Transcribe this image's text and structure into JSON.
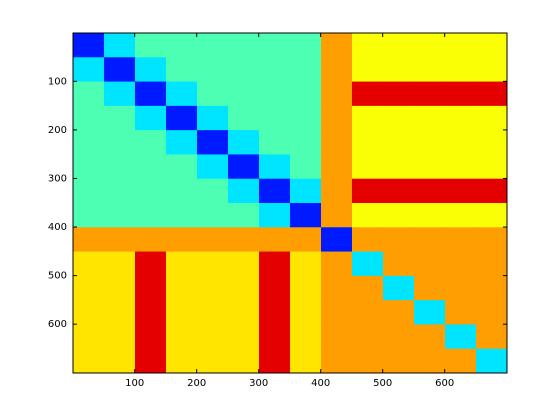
{
  "chart_data": {
    "type": "heatmap",
    "xlim": [
      0.5,
      700.5
    ],
    "ylim": [
      0.5,
      700.5
    ],
    "y_reversed": true,
    "xticks": [
      100,
      200,
      300,
      400,
      500,
      600
    ],
    "yticks": [
      100,
      200,
      300,
      400,
      500,
      600
    ],
    "clim": [
      0,
      1
    ],
    "colormap": "jet",
    "z": [
      [
        0.15,
        0.35,
        0.45,
        0.45,
        0.45,
        0.45,
        0.45,
        0.45,
        0.72,
        0.62,
        0.62,
        0.62,
        0.62,
        0.62
      ],
      [
        0.35,
        0.15,
        0.35,
        0.45,
        0.45,
        0.45,
        0.45,
        0.45,
        0.72,
        0.62,
        0.62,
        0.62,
        0.62,
        0.62
      ],
      [
        0.45,
        0.35,
        0.15,
        0.35,
        0.45,
        0.45,
        0.45,
        0.45,
        0.72,
        0.9,
        0.9,
        0.9,
        0.9,
        0.9
      ],
      [
        0.45,
        0.45,
        0.35,
        0.15,
        0.35,
        0.45,
        0.45,
        0.45,
        0.72,
        0.62,
        0.62,
        0.62,
        0.62,
        0.62
      ],
      [
        0.45,
        0.45,
        0.45,
        0.35,
        0.15,
        0.35,
        0.45,
        0.45,
        0.72,
        0.62,
        0.62,
        0.62,
        0.62,
        0.62
      ],
      [
        0.45,
        0.45,
        0.45,
        0.45,
        0.35,
        0.15,
        0.35,
        0.45,
        0.72,
        0.62,
        0.62,
        0.62,
        0.62,
        0.62
      ],
      [
        0.45,
        0.45,
        0.45,
        0.45,
        0.45,
        0.35,
        0.15,
        0.35,
        0.72,
        0.9,
        0.9,
        0.9,
        0.9,
        0.9
      ],
      [
        0.45,
        0.45,
        0.45,
        0.45,
        0.45,
        0.45,
        0.35,
        0.15,
        0.72,
        0.62,
        0.62,
        0.62,
        0.62,
        0.62
      ],
      [
        0.72,
        0.72,
        0.72,
        0.72,
        0.72,
        0.72,
        0.72,
        0.72,
        0.15,
        0.72,
        0.72,
        0.72,
        0.72,
        0.72
      ],
      [
        0.65,
        0.65,
        0.9,
        0.65,
        0.65,
        0.65,
        0.9,
        0.65,
        0.72,
        0.35,
        0.72,
        0.72,
        0.72,
        0.72
      ],
      [
        0.65,
        0.65,
        0.9,
        0.65,
        0.65,
        0.65,
        0.9,
        0.65,
        0.72,
        0.72,
        0.35,
        0.72,
        0.72,
        0.72
      ],
      [
        0.65,
        0.65,
        0.9,
        0.65,
        0.65,
        0.65,
        0.9,
        0.65,
        0.72,
        0.72,
        0.72,
        0.35,
        0.72,
        0.72
      ],
      [
        0.65,
        0.65,
        0.9,
        0.65,
        0.65,
        0.65,
        0.9,
        0.65,
        0.72,
        0.72,
        0.72,
        0.72,
        0.35,
        0.72
      ],
      [
        0.65,
        0.65,
        0.9,
        0.65,
        0.65,
        0.65,
        0.9,
        0.65,
        0.72,
        0.72,
        0.72,
        0.72,
        0.72,
        0.35
      ]
    ]
  }
}
